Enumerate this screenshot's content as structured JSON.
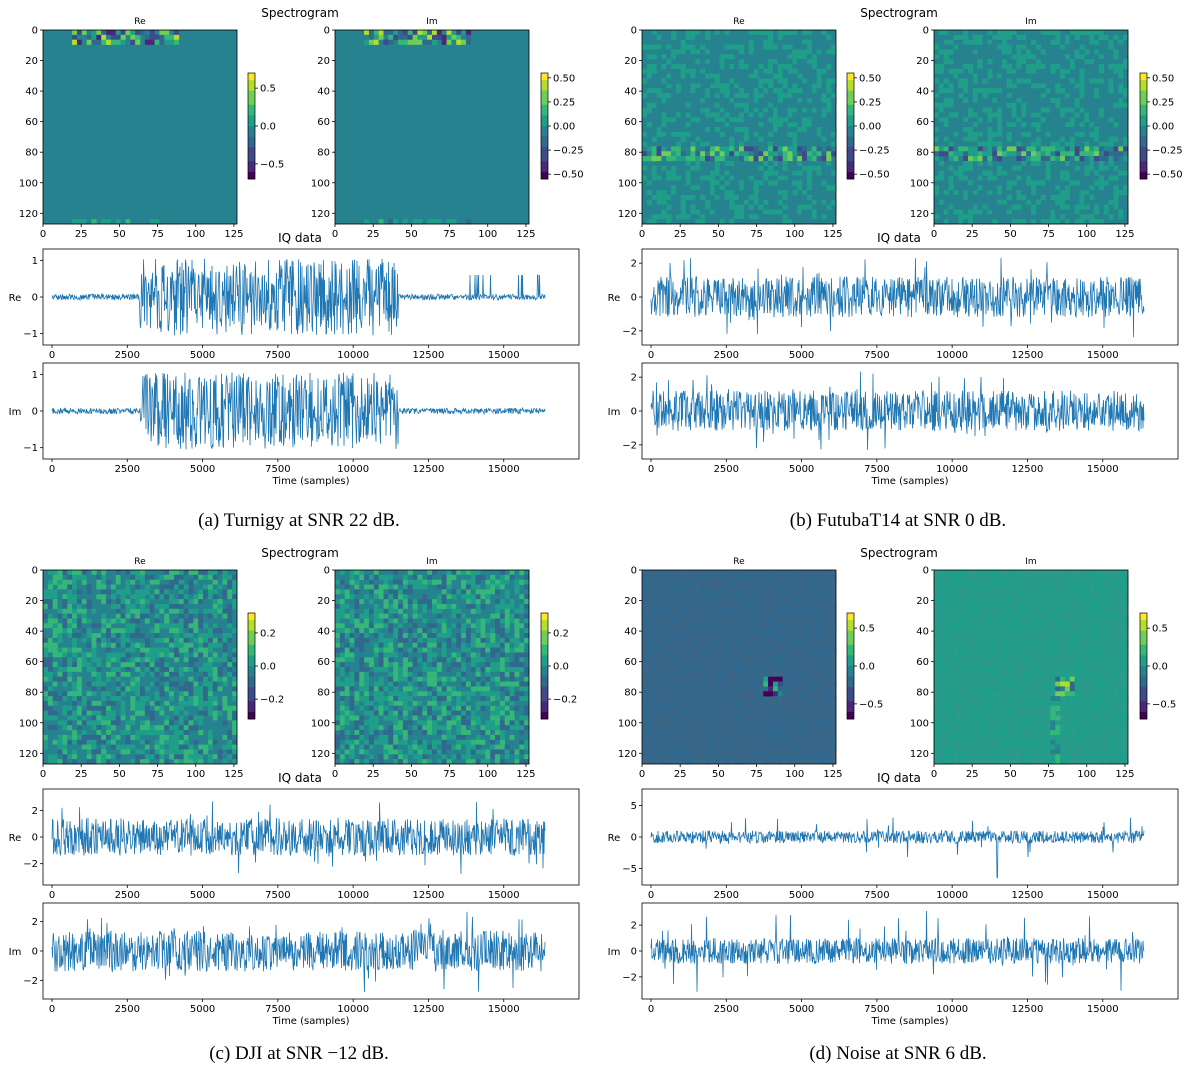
{
  "colors": {
    "line": "#1f77b4",
    "viridis": [
      "#440154",
      "#482878",
      "#3e4a89",
      "#31688e",
      "#26828e",
      "#1f9e89",
      "#35b779",
      "#6ece58",
      "#b5de2b",
      "#fde725"
    ]
  },
  "panels": [
    {
      "suptitle": "Spectrogram",
      "iq_title": "IQ data",
      "caption": "(a) Turnigy at SNR 22 dB.",
      "re_title": "Re",
      "im_title": "Im",
      "re_label": "Re",
      "im_label": "Im",
      "xlabel": "Time (samples)",
      "spec_x_ticks": [
        "0",
        "25",
        "50",
        "75",
        "100",
        "125"
      ],
      "spec_y_ticks": [
        "0",
        "20",
        "40",
        "60",
        "80",
        "100",
        "120"
      ],
      "time_ticks": [
        "0",
        "2500",
        "5000",
        "7500",
        "10000",
        "12500",
        "15000"
      ],
      "re_colorbar_ticks": [
        "0.5",
        "0.0",
        "−0.5"
      ],
      "im_colorbar_ticks": [
        "0.50",
        "0.25",
        "0.00",
        "−0.25",
        "−0.50"
      ],
      "re_iq_y_ticks": [
        "1",
        "0",
        "−1"
      ],
      "im_iq_y_ticks": [
        "1",
        "0",
        "−1"
      ]
    },
    {
      "suptitle": "Spectrogram",
      "iq_title": "IQ data",
      "caption": "(b) FutubaT14 at SNR 0 dB.",
      "re_title": "Re",
      "im_title": "Im",
      "re_label": "Re",
      "im_label": "Im",
      "xlabel": "Time (samples)",
      "spec_x_ticks": [
        "0",
        "25",
        "50",
        "75",
        "100",
        "125"
      ],
      "spec_y_ticks": [
        "0",
        "20",
        "40",
        "60",
        "80",
        "100",
        "120"
      ],
      "time_ticks": [
        "0",
        "2500",
        "5000",
        "7500",
        "10000",
        "12500",
        "15000"
      ],
      "re_colorbar_ticks": [
        "0.50",
        "0.25",
        "0.00",
        "−0.25",
        "−0.50"
      ],
      "im_colorbar_ticks": [
        "0.50",
        "0.25",
        "0.00",
        "−0.25",
        "−0.50"
      ],
      "re_iq_y_ticks": [
        "2",
        "0",
        "−2"
      ],
      "im_iq_y_ticks": [
        "2",
        "0",
        "−2"
      ]
    },
    {
      "suptitle": "Spectrogram",
      "iq_title": "IQ data",
      "caption": "(c) DJI at SNR −12 dB.",
      "re_title": "Re",
      "im_title": "Im",
      "re_label": "Re",
      "im_label": "Im",
      "xlabel": "Time (samples)",
      "spec_x_ticks": [
        "0",
        "25",
        "50",
        "75",
        "100",
        "125"
      ],
      "spec_y_ticks": [
        "0",
        "20",
        "40",
        "60",
        "80",
        "100",
        "120"
      ],
      "time_ticks": [
        "0",
        "2500",
        "5000",
        "7500",
        "10000",
        "12500",
        "15000"
      ],
      "re_colorbar_ticks": [
        "0.2",
        "0.0",
        "−0.2"
      ],
      "im_colorbar_ticks": [
        "0.2",
        "0.0",
        "−0.2"
      ],
      "re_iq_y_ticks": [
        "2",
        "0",
        "−2"
      ],
      "im_iq_y_ticks": [
        "2",
        "0",
        "−2"
      ]
    },
    {
      "suptitle": "Spectrogram",
      "iq_title": "IQ data",
      "caption": "(d) Noise at SNR 6 dB.",
      "re_title": "Re",
      "im_title": "Im",
      "re_label": "Re",
      "im_label": "Im",
      "xlabel": "Time (samples)",
      "spec_x_ticks": [
        "0",
        "25",
        "50",
        "75",
        "100",
        "125"
      ],
      "spec_y_ticks": [
        "0",
        "20",
        "40",
        "60",
        "80",
        "100",
        "120"
      ],
      "time_ticks": [
        "0",
        "2500",
        "5000",
        "7500",
        "10000",
        "12500",
        "15000"
      ],
      "re_colorbar_ticks": [
        "0.5",
        "0.0",
        "−0.5"
      ],
      "im_colorbar_ticks": [
        "0.5",
        "0.0",
        "−0.5"
      ],
      "re_iq_y_ticks": [
        "5",
        "0",
        "−5"
      ],
      "im_iq_y_ticks": [
        "2",
        "0",
        "−2"
      ]
    }
  ],
  "chart_data": [
    {
      "type": "heatmap+line",
      "title": "Turnigy at SNR 22 dB",
      "spectrogram": {
        "x_range": [
          0,
          127
        ],
        "y_range": [
          0,
          127
        ],
        "re_colorbar": [
          -0.7,
          0.7
        ],
        "im_colorbar": [
          -0.55,
          0.55
        ],
        "feature": "activity at rows 0-8 between columns 20-90, faint at row 126"
      },
      "iq": {
        "x_range": [
          0,
          16384
        ],
        "re_ylim": [
          -1.2,
          1.2
        ],
        "im_ylim": [
          -1.2,
          1.2
        ],
        "segments": [
          {
            "x": [
              0,
              2900
            ],
            "amp": 0.08
          },
          {
            "x": [
              2900,
              11500
            ],
            "amp": 1.05
          },
          {
            "x": [
              11500,
              16384
            ],
            "amp": 0.08
          }
        ],
        "re_spikes": {
          "x": [
            13600,
            16200
          ],
          "amp": 0.6
        }
      }
    },
    {
      "type": "heatmap+line",
      "title": "FutubaT14 at SNR 0 dB",
      "spectrogram": {
        "x_range": [
          0,
          127
        ],
        "y_range": [
          0,
          127
        ],
        "re_colorbar": [
          -0.55,
          0.55
        ],
        "im_colorbar": [
          -0.55,
          0.55
        ],
        "feature": "band at row 80"
      },
      "iq": {
        "x_range": [
          0,
          16384
        ],
        "re_ylim": [
          -2.6,
          2.6
        ],
        "im_ylim": [
          -2.6,
          2.6
        ],
        "segments": [
          {
            "x": [
              0,
              16384
            ],
            "amp": 1.2,
            "peak": 2.4
          }
        ]
      }
    },
    {
      "type": "heatmap+line",
      "title": "DJI at SNR −12 dB",
      "spectrogram": {
        "x_range": [
          0,
          127
        ],
        "y_range": [
          0,
          127
        ],
        "re_colorbar": [
          -0.32,
          0.32
        ],
        "im_colorbar": [
          -0.32,
          0.32
        ],
        "feature": "noise across full image"
      },
      "iq": {
        "x_range": [
          0,
          16384
        ],
        "re_ylim": [
          -3.3,
          3.3
        ],
        "im_ylim": [
          -3.0,
          3.0
        ],
        "segments": [
          {
            "x": [
              0,
              16384
            ],
            "amp": 1.4,
            "peak": 2.8
          }
        ]
      }
    },
    {
      "type": "heatmap+line",
      "title": "Noise at SNR 6 dB",
      "spectrogram": {
        "x_range": [
          0,
          127
        ],
        "y_range": [
          0,
          127
        ],
        "re_colorbar": [
          -0.7,
          0.7
        ],
        "im_colorbar": [
          -0.7,
          0.7
        ],
        "feature": "sparse artifacts near column 85 row 75"
      },
      "iq": {
        "x_range": [
          0,
          16384
        ],
        "re_ylim": [
          -7.5,
          5
        ],
        "im_ylim": [
          -3.4,
          3.4
        ],
        "segments": [
          {
            "x": [
              0,
              16384
            ],
            "amp": 1.0,
            "peak": 3.2
          }
        ],
        "re_spike": {
          "x": 11500,
          "y": -6.5
        }
      }
    }
  ]
}
